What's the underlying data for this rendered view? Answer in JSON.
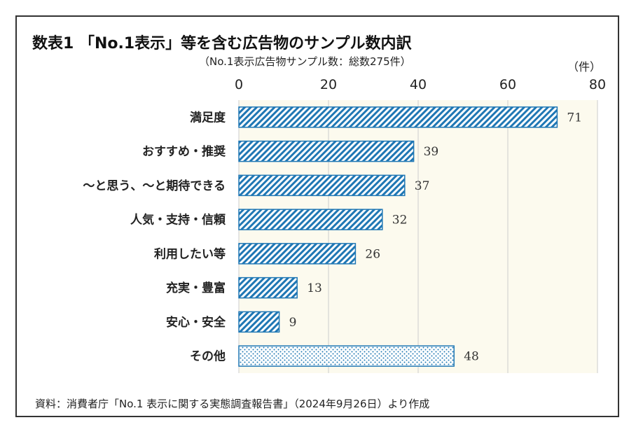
{
  "title": "数表1 「No.1表示」等を含む広告物のサンプル数内訳",
  "subtitle": "（No.1表示広告物サンプル数：総数275件）",
  "unit": "（件）",
  "source": "資料：消費者庁「No.1 表示に関する実態調査報告書」（2024年9月26日）より作成",
  "colors": {
    "bar": "#1f77b4",
    "plot_bg": "#fcfaee",
    "grid": "#cccccc"
  },
  "chart_data": {
    "type": "bar",
    "orientation": "horizontal",
    "categories": [
      "満足度",
      "おすすめ・推奨",
      "～と思う、～と期待できる",
      "人気・支持・信頼",
      "利用したい等",
      "充実・豊富",
      "安心・安全",
      "その他"
    ],
    "values": [
      71,
      39,
      37,
      32,
      26,
      13,
      9,
      48
    ],
    "patterns": [
      "diagonal",
      "diagonal",
      "diagonal",
      "diagonal",
      "diagonal",
      "diagonal",
      "diagonal",
      "dotted"
    ],
    "xlim": [
      0,
      80
    ],
    "xticks": [
      0,
      20,
      40,
      60,
      80
    ],
    "grid": true,
    "xaxis_position": "top"
  }
}
